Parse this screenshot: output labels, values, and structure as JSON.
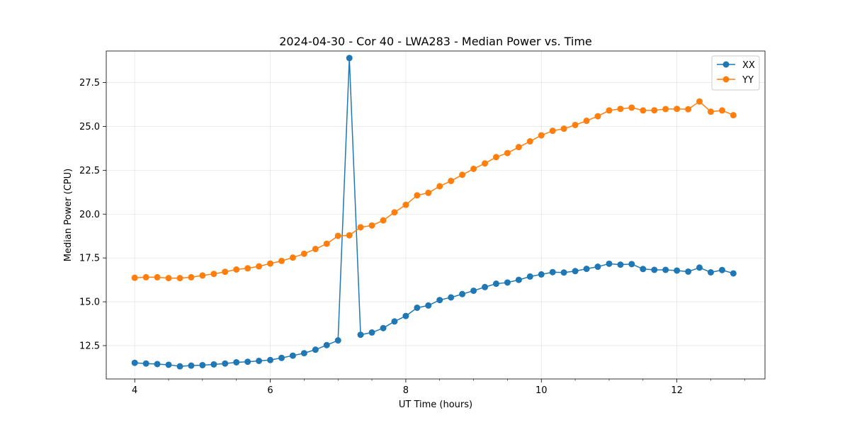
{
  "chart_data": {
    "type": "line",
    "title": "2024-04-30 - Cor 40 - LWA283 - Median Power vs. Time",
    "xlabel": "UT Time (hours)",
    "ylabel": "Median Power (CPU)",
    "xlim": [
      3.58,
      13.3
    ],
    "ylim": [
      10.6,
      29.3
    ],
    "xticks": [
      4,
      6,
      8,
      10,
      12
    ],
    "xtick_labels": [
      "4",
      "6",
      "8",
      "10",
      "12"
    ],
    "yticks": [
      12.5,
      15.0,
      17.5,
      20.0,
      22.5,
      25.0,
      27.5
    ],
    "ytick_labels": [
      "12.5",
      "15.0",
      "17.5",
      "20.0",
      "22.5",
      "25.0",
      "27.5"
    ],
    "grid": true,
    "legend_position": "top-right",
    "x": [
      4.0,
      4.167,
      4.333,
      4.5,
      4.667,
      4.833,
      5.0,
      5.167,
      5.333,
      5.5,
      5.667,
      5.833,
      6.0,
      6.167,
      6.333,
      6.5,
      6.667,
      6.833,
      7.0,
      7.167,
      7.333,
      7.5,
      7.667,
      7.833,
      8.0,
      8.167,
      8.333,
      8.5,
      8.667,
      8.833,
      9.0,
      9.167,
      9.333,
      9.5,
      9.667,
      9.833,
      10.0,
      10.167,
      10.333,
      10.5,
      10.667,
      10.833,
      11.0,
      11.167,
      11.333,
      11.5,
      11.667,
      11.833,
      12.0,
      12.167,
      12.333,
      12.5,
      12.667,
      12.833
    ],
    "series": [
      {
        "name": "XX",
        "color": "#1f77b4",
        "values": [
          11.52,
          11.48,
          11.45,
          11.41,
          11.32,
          11.36,
          11.39,
          11.43,
          11.48,
          11.55,
          11.58,
          11.63,
          11.68,
          11.8,
          11.93,
          12.07,
          12.27,
          12.53,
          12.8,
          28.9,
          13.12,
          13.25,
          13.5,
          13.88,
          14.19,
          14.66,
          14.79,
          15.1,
          15.25,
          15.44,
          15.63,
          15.84,
          16.03,
          16.1,
          16.25,
          16.44,
          16.56,
          16.69,
          16.67,
          16.75,
          16.88,
          17.0,
          17.17,
          17.12,
          17.15,
          16.87,
          16.82,
          16.82,
          16.78,
          16.72,
          16.95,
          16.68,
          16.81,
          16.62
        ]
      },
      {
        "name": "YY",
        "color": "#ff7f0e",
        "values": [
          16.37,
          16.4,
          16.4,
          16.35,
          16.35,
          16.4,
          16.5,
          16.59,
          16.71,
          16.84,
          16.91,
          17.02,
          17.18,
          17.33,
          17.52,
          17.74,
          18.01,
          18.31,
          18.76,
          18.79,
          19.25,
          19.35,
          19.64,
          20.1,
          20.53,
          21.07,
          21.21,
          21.59,
          21.89,
          22.24,
          22.58,
          22.89,
          23.25,
          23.48,
          23.82,
          24.15,
          24.49,
          24.75,
          24.87,
          25.08,
          25.32,
          25.58,
          25.91,
          26.0,
          26.07,
          25.91,
          25.92,
          25.99,
          26.0,
          25.98,
          26.42,
          25.84,
          25.91,
          25.64
        ]
      }
    ]
  }
}
